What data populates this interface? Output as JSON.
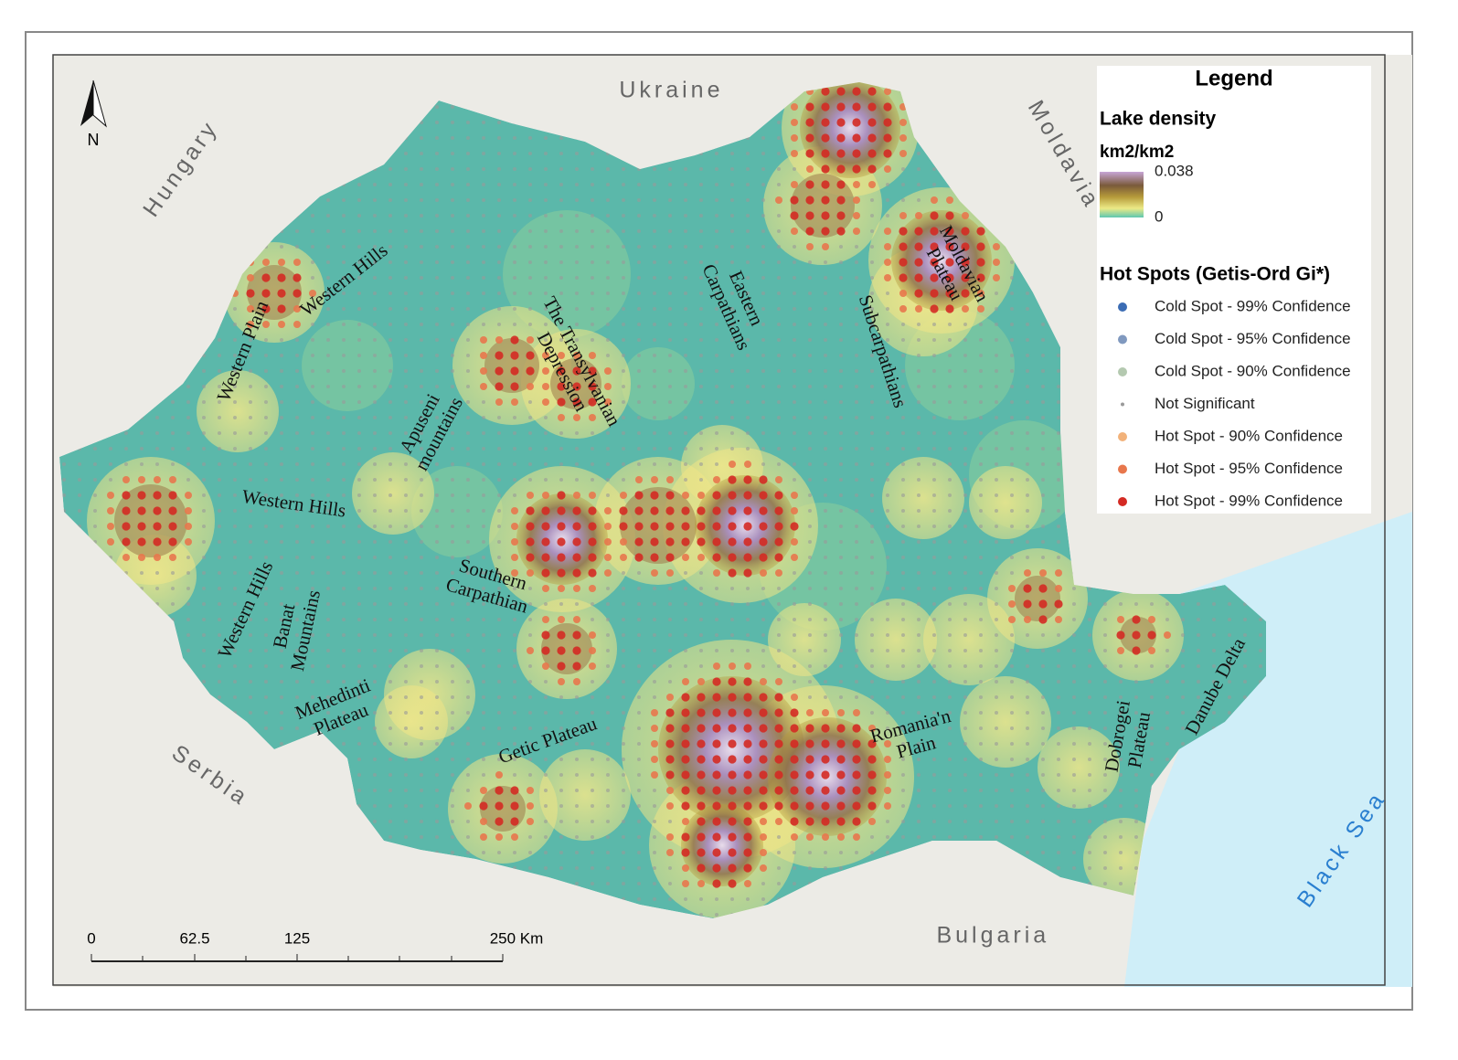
{
  "map": {
    "north": "N",
    "countries": [
      "Ukraine",
      "Moldavia",
      "Hungary",
      "Serbia",
      "Bulgaria"
    ],
    "sea": "Black Sea",
    "regions": [
      [
        "Western Hills"
      ],
      [
        "Western Plain"
      ],
      [
        "Apuseni",
        "mountains"
      ],
      [
        "The Transylvanian",
        "Depression"
      ],
      [
        "Eastern",
        "Carpathians"
      ],
      [
        "Subcarpathians"
      ],
      [
        "Moldavian",
        "Plateau"
      ],
      [
        "Western Hills"
      ],
      [
        "Western Hills"
      ],
      [
        "Banat",
        "Mountains"
      ],
      [
        "Southern",
        "Carpathian"
      ],
      [
        "Mehedinti",
        "Plateau"
      ],
      [
        "Getic Plateau"
      ],
      [
        "Romania'n",
        "Plain"
      ],
      [
        "Dobrogei",
        "Plateau"
      ],
      [
        "Danube Delta"
      ]
    ],
    "scale_bar": [
      "0",
      "62.5",
      "125",
      "250 Km"
    ]
  },
  "legend": {
    "title": "Legend",
    "density_title": "Lake density",
    "density_unit": "km2/km2",
    "density_max": "0.038",
    "density_min": "0",
    "hotspot_title": "Hot Spots (Getis-Ord Gi*)",
    "items": [
      {
        "label": "Cold Spot - 99% Confidence",
        "color": "#3b6cb4"
      },
      {
        "label": "Cold Spot - 95% Confidence",
        "color": "#8099bf"
      },
      {
        "label": "Cold Spot - 90% Confidence",
        "color": "#b4c9b0"
      },
      {
        "label": "Not Significant",
        "color": "#9a9a9a"
      },
      {
        "label": "Hot Spot - 90% Confidence",
        "color": "#f2b27a"
      },
      {
        "label": "Hot Spot - 95% Confidence",
        "color": "#e8774c"
      },
      {
        "label": "Hot Spot - 99% Confidence",
        "color": "#d42a23"
      }
    ]
  }
}
